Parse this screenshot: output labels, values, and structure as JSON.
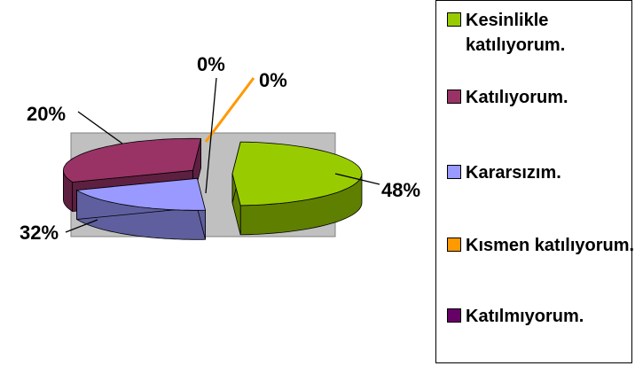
{
  "chart_data": {
    "type": "pie",
    "title": "",
    "categories": [
      "Kesinlikle katılıyorum.",
      "Katılıyorum.",
      "Kararsızım.",
      "Kısmen katılıyorum.",
      "Katılmıyorum."
    ],
    "values": [
      48,
      32,
      20,
      0,
      0
    ],
    "data_labels": [
      "48%",
      "32%",
      "20%",
      "0%",
      "0%"
    ],
    "colors": [
      "#99cc00",
      "#993366",
      "#9999ff",
      "#ff9900",
      "#660066"
    ],
    "side_colors": [
      "#5f7f00",
      "#5e2040",
      "#5f5f9f",
      "#9f5f00",
      "#3f003f"
    ],
    "legend_position": "right",
    "style": "3d-exploded-pie",
    "plot_background": "#c0c0c0",
    "legend": [
      {
        "label": "Kesinlikle katılıyorum.",
        "color": "#99cc00"
      },
      {
        "label": "Katılıyorum.",
        "color": "#993366"
      },
      {
        "label": "Kararsızım.",
        "color": "#9999ff"
      },
      {
        "label": "Kısmen katılıyorum.",
        "color": "#ff9900"
      },
      {
        "label": "Katılmıyorum.",
        "color": "#660066"
      }
    ]
  }
}
